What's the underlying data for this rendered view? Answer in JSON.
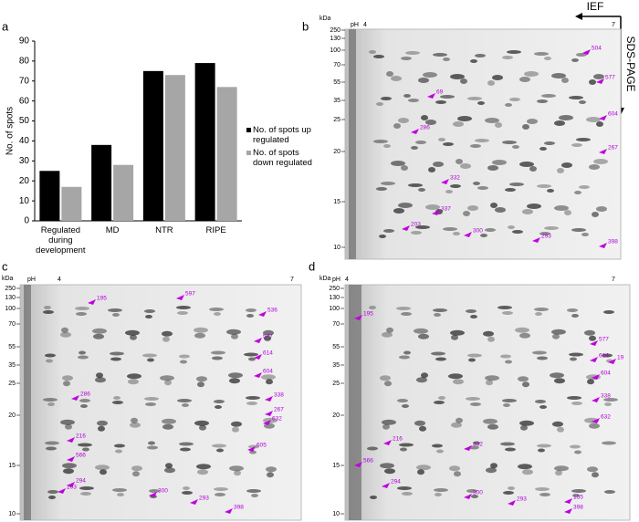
{
  "chart_data": {
    "type": "bar",
    "ylabel": "No. of spots",
    "categories": [
      "Regulated during development",
      "MD",
      "NTR",
      "RIPE"
    ],
    "series": [
      {
        "name": "No. of spots up regulated",
        "color": "#000000",
        "values": [
          25,
          38,
          75,
          79
        ]
      },
      {
        "name": "No. of spots down regulated",
        "color": "#a6a6a6",
        "values": [
          17,
          28,
          73,
          67
        ]
      }
    ],
    "ylim": [
      0,
      90
    ],
    "yticks": [
      0,
      10,
      20,
      30,
      40,
      50,
      60,
      70,
      80,
      90
    ],
    "grid": false
  },
  "panel_labels": [
    "a",
    "b",
    "c",
    "d"
  ],
  "ief_label": "IEF",
  "sds_label": "SDS-PAGE",
  "gels": [
    {
      "kda": "kDa",
      "ph": "pH",
      "ph_low": "4",
      "ph_high": "7",
      "mw": [
        "250",
        "130",
        "100",
        "70",
        "55",
        "35",
        "25",
        "20",
        "15",
        "10"
      ],
      "spots": [
        "504",
        "577",
        "604",
        "267",
        "398",
        "293",
        "300",
        "203",
        "337",
        "332",
        "286",
        "69"
      ]
    },
    {
      "kda": "kDa",
      "ph": "pH",
      "ph_low": "4",
      "ph_high": "7",
      "mw": [
        "250",
        "130",
        "100",
        "70",
        "55",
        "35",
        "25",
        "20",
        "15",
        "10"
      ],
      "spots": [
        "195",
        "597",
        "536",
        "577",
        "614",
        "604",
        "338",
        "267",
        "632",
        "605",
        "566",
        "294",
        "203",
        "300",
        "293",
        "398",
        "216",
        "286"
      ]
    },
    {
      "kda": "kDa",
      "ph": "pH",
      "ph_low": "4",
      "ph_high": "7",
      "mw": [
        "250",
        "130",
        "100",
        "70",
        "55",
        "35",
        "25",
        "20",
        "15",
        "10"
      ],
      "spots": [
        "195",
        "577",
        "614",
        "604",
        "19",
        "338",
        "632",
        "566",
        "216",
        "294",
        "300",
        "293",
        "155",
        "398",
        "332"
      ]
    }
  ]
}
